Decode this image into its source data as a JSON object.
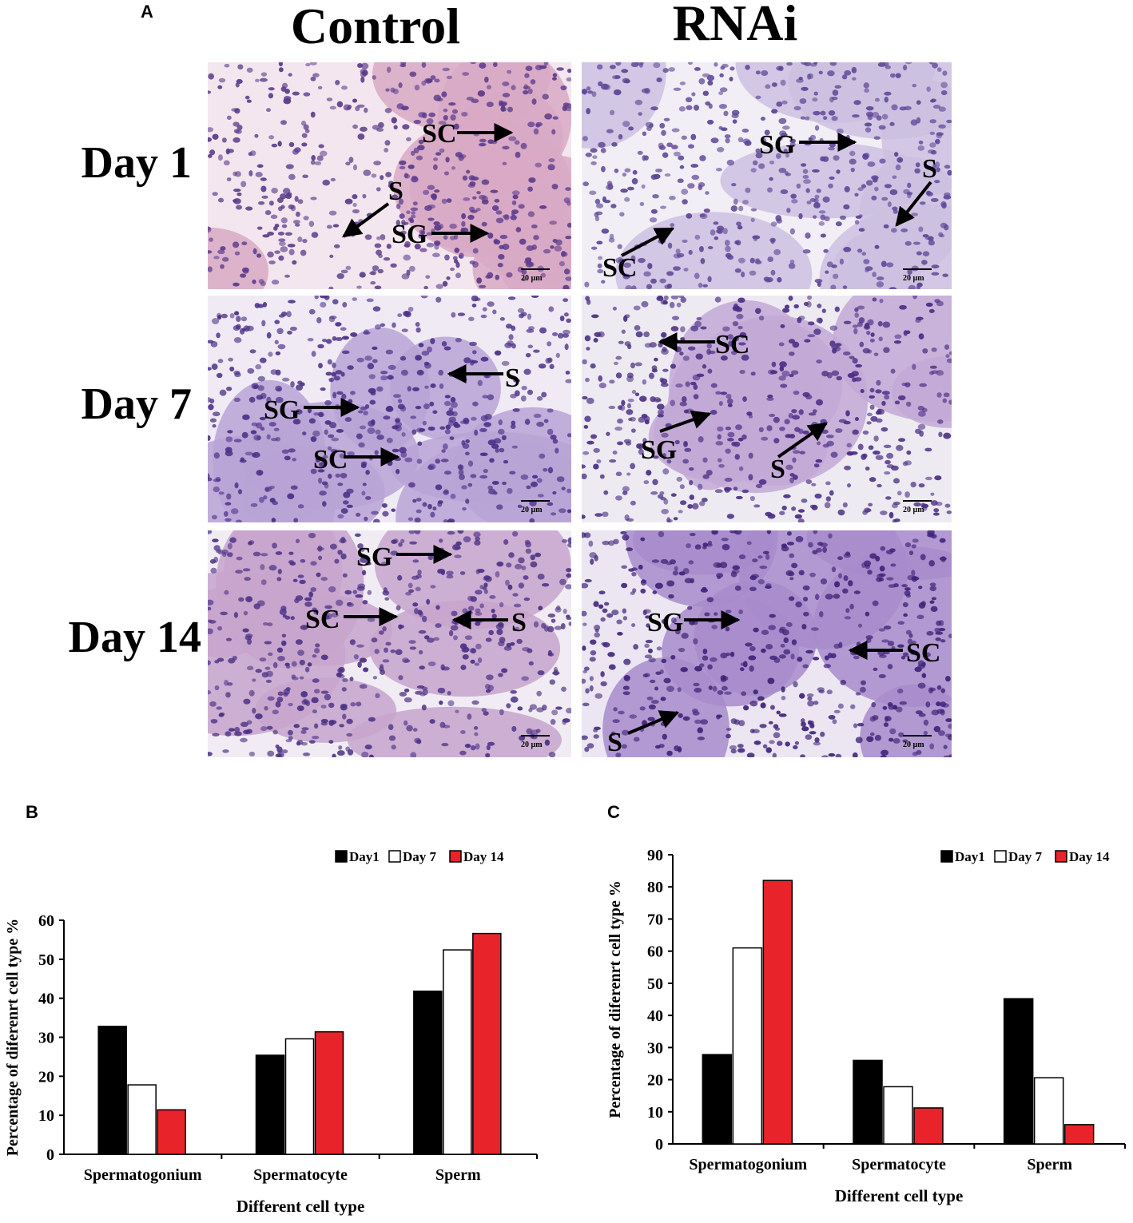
{
  "figure": {
    "panel_a": "A",
    "panel_b": "B",
    "panel_c": "C",
    "col_control": "Control",
    "col_rnai": "RNAi",
    "row_day1": "Day 1",
    "row_day7": "Day 7",
    "row_day14": "Day 14",
    "scale_bar": "20 µm",
    "micrographs": [
      {
        "id": "c1",
        "labels": [
          "SC",
          "S",
          "SG"
        ]
      },
      {
        "id": "r1",
        "labels": [
          "SG",
          "S",
          "SC"
        ]
      },
      {
        "id": "c7",
        "labels": [
          "S",
          "SG",
          "SC"
        ]
      },
      {
        "id": "r7",
        "labels": [
          "SC",
          "SG",
          "S"
        ]
      },
      {
        "id": "c14",
        "labels": [
          "SG",
          "SC",
          "S"
        ]
      },
      {
        "id": "r14",
        "labels": [
          "SG",
          "SC",
          "S"
        ]
      }
    ],
    "colors": {
      "day1": "#000000",
      "day7": "#ffffff",
      "day14": "#e8232a",
      "he_pink": "#e8b4c4",
      "he_purple": "#5a3b8c"
    }
  },
  "chart_data": [
    {
      "type": "bar",
      "categories": [
        "Spermatogonium",
        "Spermatocyte",
        "Sperm"
      ],
      "series": [
        {
          "name": "Day1",
          "values": [
            32.8,
            25.4,
            41.8
          ]
        },
        {
          "name": "Day 7",
          "values": [
            17.8,
            29.6,
            52.4
          ]
        },
        {
          "name": "Day 14",
          "values": [
            11.4,
            31.4,
            56.6
          ]
        }
      ],
      "xlabel": "Different cell type",
      "ylabel": "Percentage of diferenrt cell type %",
      "ylim": [
        0,
        60
      ],
      "yticks": [
        0,
        10,
        20,
        30,
        40,
        50,
        60
      ],
      "legend": "top-right"
    },
    {
      "type": "bar",
      "categories": [
        "Spermatogonium",
        "Spermatocyte",
        "Sperm"
      ],
      "series": [
        {
          "name": "Day1",
          "values": [
            27.8,
            26,
            45.2
          ]
        },
        {
          "name": "Day 7",
          "values": [
            61,
            17.8,
            20.6
          ]
        },
        {
          "name": "Day 14",
          "values": [
            82,
            11.2,
            6
          ]
        }
      ],
      "xlabel": "Different cell type",
      "ylabel": "Percentage of diferenrt cell type %",
      "ylim": [
        0,
        90
      ],
      "yticks": [
        0,
        10,
        20,
        30,
        40,
        50,
        60,
        70,
        80,
        90
      ],
      "legend": "top-right"
    }
  ]
}
